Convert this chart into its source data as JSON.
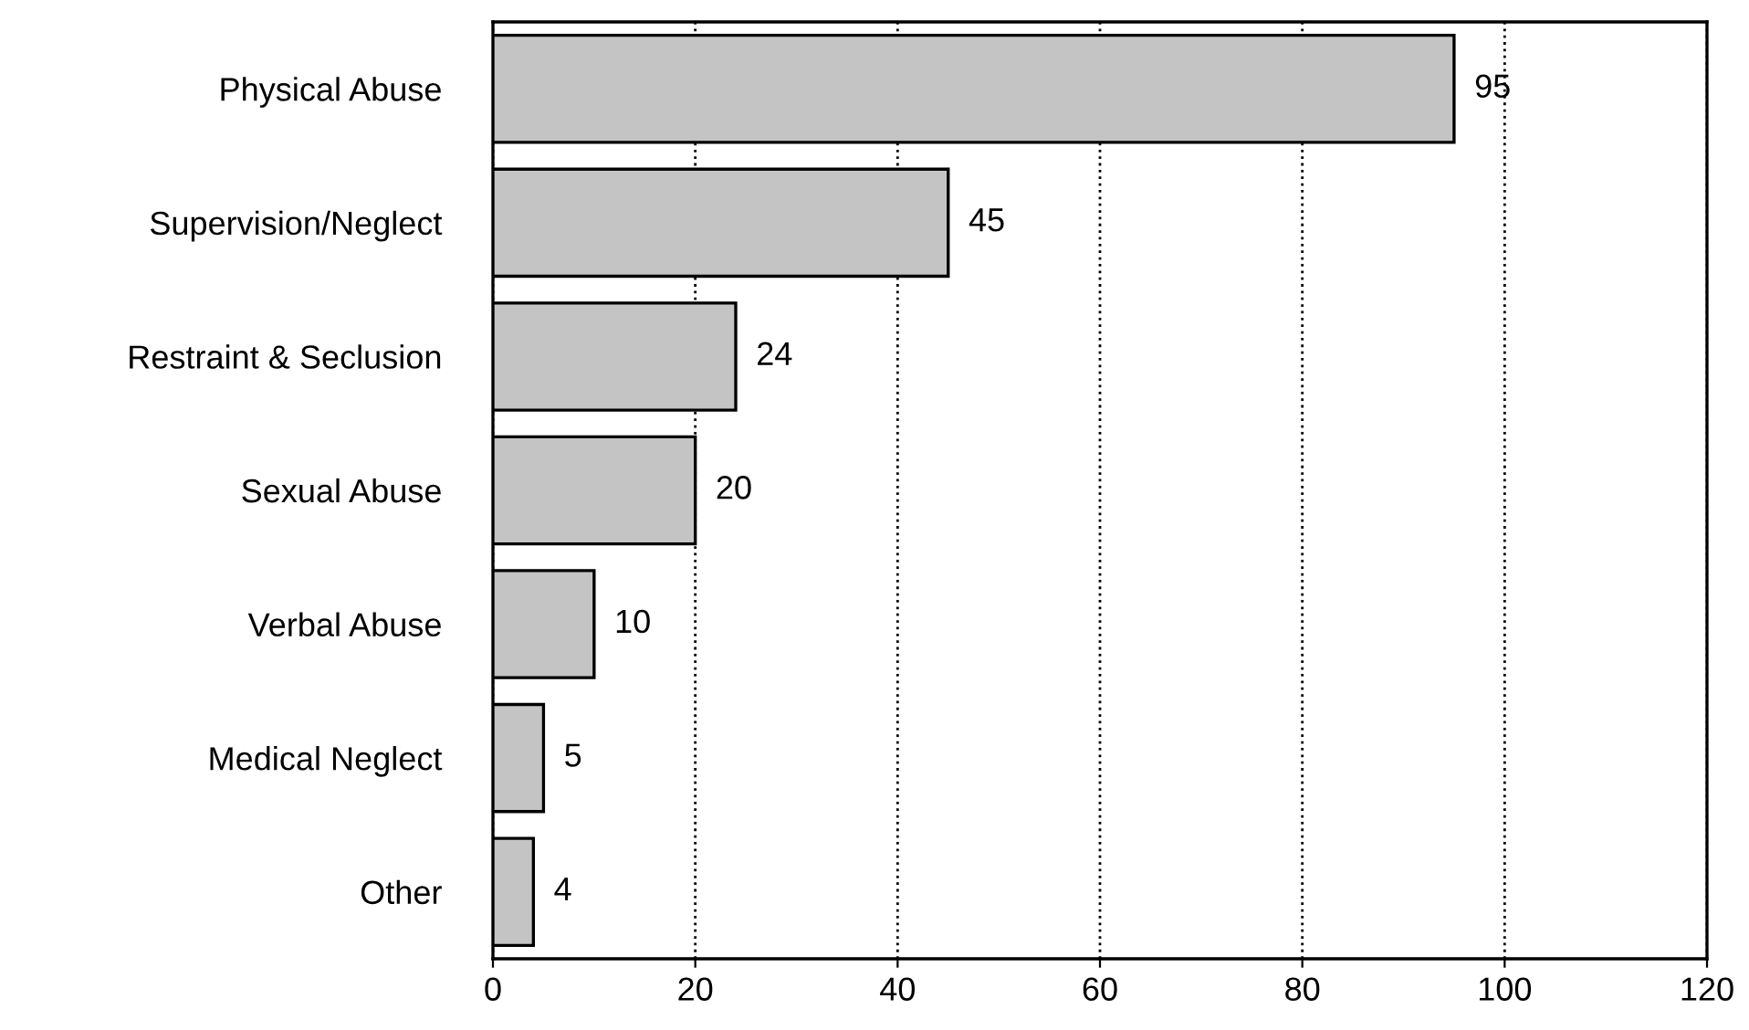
{
  "chart_data": {
    "type": "bar",
    "orientation": "horizontal",
    "categories": [
      "Physical Abuse",
      "Supervision/Neglect",
      "Restraint & Seclusion",
      "Sexual Abuse",
      "Verbal Abuse",
      "Medical Neglect",
      "Other"
    ],
    "values": [
      95,
      45,
      24,
      20,
      10,
      5,
      4
    ],
    "color": "#c4c4c4",
    "xlim": [
      0,
      120
    ],
    "xticks": [
      0,
      20,
      40,
      60,
      80,
      100,
      120
    ],
    "grid": "x",
    "line_style": "dotted",
    "data_labels": true
  }
}
